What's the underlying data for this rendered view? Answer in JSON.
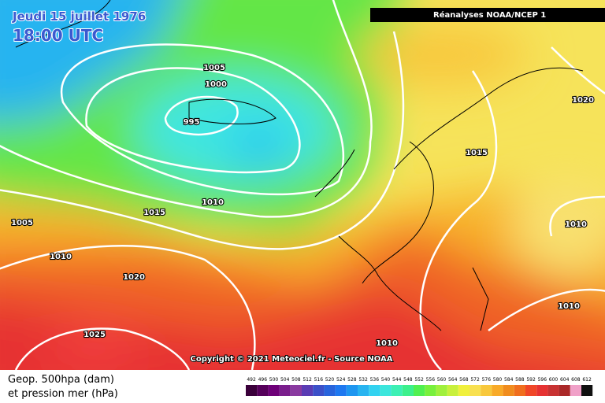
{
  "header": {
    "date": "Jeudi 15 juillet 1976",
    "time": "18:00 UTC",
    "source": "Réanalyses NOAA/NCEP 1"
  },
  "isobar_labels": [
    "1005",
    "1000",
    "995",
    "1010",
    "1015",
    "1005",
    "1010",
    "1020",
    "1025",
    "1010",
    "1015",
    "1020",
    "1010",
    "1010"
  ],
  "copyright": "Copyright © 2021 Meteociel.fr - Source NOAA",
  "legend": {
    "line1": "Geop. 500hpa (dam)",
    "line2": "et pression mer (hPa)"
  },
  "scale": {
    "labels": [
      "492",
      "496",
      "500",
      "504",
      "508",
      "512",
      "516",
      "520",
      "524",
      "528",
      "532",
      "536",
      "540",
      "544",
      "548",
      "552",
      "556",
      "560",
      "564",
      "568",
      "572",
      "576",
      "580",
      "584",
      "588",
      "592",
      "596",
      "600",
      "604",
      "608",
      "612"
    ],
    "colors": [
      "#3a003a",
      "#55005a",
      "#6e0078",
      "#7a1e8c",
      "#8a3aa0",
      "#5a3cb4",
      "#3c50c8",
      "#2864dc",
      "#1e78f0",
      "#1e96f0",
      "#28b4f0",
      "#32d2f0",
      "#3ce6dc",
      "#3cf0b4",
      "#3cf08c",
      "#50f050",
      "#78f03c",
      "#a0f03c",
      "#c8f03c",
      "#f0f03c",
      "#f8e050",
      "#f8c83c",
      "#f8aa28",
      "#f08c1e",
      "#f06e1e",
      "#f04628",
      "#e63232",
      "#c83232",
      "#aa2828",
      "#f0a0c8",
      "#101010"
    ]
  }
}
